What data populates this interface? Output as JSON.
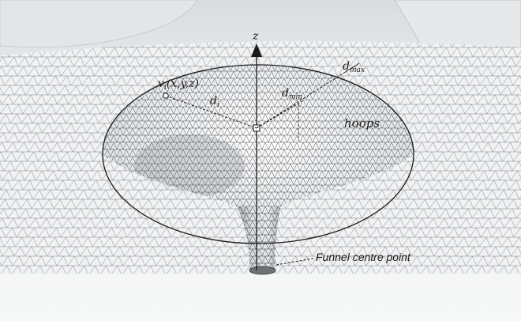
{
  "labels": {
    "z_axis": "z",
    "d_max_main": "d",
    "d_max_sub": "max",
    "d_min_main": "d",
    "d_min_sub": "min",
    "d_i_main": "d",
    "d_i_sub": "i",
    "vertex_main": "v",
    "vertex_sub": "i",
    "vertex_coords": "(x,y,z)",
    "hoops": "hoops",
    "funnel_centre": "Funnel centre point"
  },
  "colors": {
    "background": "#ffffff",
    "surface_light": "#f4f5f6",
    "surface_shade": "#b9bcc0",
    "mesh_line": "#4a4a4a",
    "outline": "#1a1a1a"
  }
}
